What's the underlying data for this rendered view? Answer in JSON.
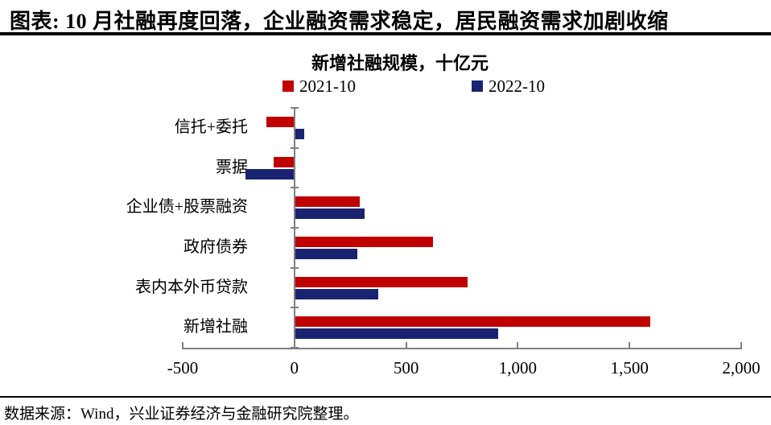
{
  "header": {
    "title": "图表: 10 月社融再度回落，企业融资需求稳定，居民融资需求加剧收缩"
  },
  "chart_data": {
    "type": "bar",
    "orientation": "horizontal",
    "title": "新增社融规模，十亿元",
    "unit": "十亿元",
    "categories": [
      "信托+委托",
      "票据",
      "企业债+股票融资",
      "政府债券",
      "表内本外币贷款",
      "新增社融"
    ],
    "series": [
      {
        "name": "2021-10",
        "color": "#c00000",
        "values": [
          -123,
          -89,
          288,
          617,
          772,
          1591
        ]
      },
      {
        "name": "2022-10",
        "color": "#192370",
        "values": [
          41,
          -216,
          311,
          279,
          371,
          908
        ]
      }
    ],
    "xlim": [
      -500,
      2000
    ],
    "x_tick_values": [
      -500,
      0,
      500,
      1000,
      1500,
      2000
    ],
    "x_tick_labels": [
      "-500",
      "0",
      "500",
      "1,000",
      "1,500",
      "2,000"
    ],
    "legend_position": "top",
    "grid": false,
    "axis_color": "#808080"
  },
  "footer": {
    "source": "数据来源：Wind，兴业证券经济与金融研究院整理。"
  }
}
